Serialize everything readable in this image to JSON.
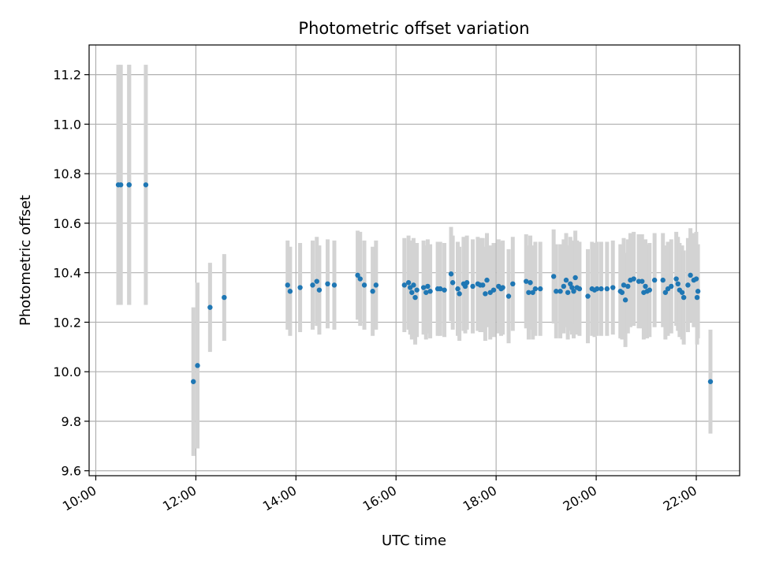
{
  "chart_data": {
    "type": "scatter",
    "title": "Photometric offset variation",
    "xlabel": "UTC time",
    "ylabel": "Photometric offset",
    "x_ticks": [
      "10:00",
      "12:00",
      "14:00",
      "16:00",
      "18:00",
      "20:00",
      "22:00"
    ],
    "y_ticks": [
      "9.6",
      "9.8",
      "10.0",
      "10.2",
      "10.4",
      "10.6",
      "10.8",
      "11.0",
      "11.2"
    ],
    "xlim": [
      "09:52",
      "22:52"
    ],
    "ylim": [
      9.58,
      11.32
    ],
    "grid": true,
    "colors": {
      "points": "#1f77b4",
      "errorbars": "#d3d3d3",
      "grid": "#b0b0b0"
    },
    "series": [
      {
        "x": [
          "10:27",
          "10:30",
          "10:40",
          "10:40",
          "11:00",
          "11:57",
          "12:02",
          "12:17",
          "12:34",
          "13:50",
          "13:53",
          "14:05",
          "14:20",
          "14:25",
          "14:28",
          "14:38",
          "14:46",
          "15:14",
          "15:17",
          "15:22",
          "15:32",
          "15:36",
          "16:10",
          "16:15",
          "16:17",
          "16:19",
          "16:21",
          "16:23",
          "16:25",
          "16:33",
          "16:36",
          "16:38",
          "16:41",
          "16:50",
          "16:53",
          "16:58",
          "17:06",
          "17:08",
          "17:14",
          "17:16",
          "17:21",
          "17:23",
          "17:25",
          "17:32",
          "17:38",
          "17:41",
          "17:44",
          "17:47",
          "17:49",
          "17:53",
          "17:57",
          "18:03",
          "18:06",
          "18:08",
          "18:15",
          "18:20",
          "18:36",
          "18:39",
          "18:41",
          "18:44",
          "18:47",
          "18:53",
          "19:09",
          "19:12",
          "19:17",
          "19:21",
          "19:24",
          "19:26",
          "19:29",
          "19:31",
          "19:33",
          "19:35",
          "19:37",
          "19:40",
          "19:50",
          "19:55",
          "19:58",
          "20:01",
          "20:06",
          "20:13",
          "20:20",
          "20:29",
          "20:31",
          "20:33",
          "20:35",
          "20:38",
          "20:41",
          "20:45",
          "20:51",
          "20:55",
          "20:57",
          "20:59",
          "21:01",
          "21:04",
          "21:10",
          "21:20",
          "21:23",
          "21:26",
          "21:30",
          "21:36",
          "21:38",
          "21:40",
          "21:43",
          "21:45",
          "21:50",
          "21:53",
          "21:57",
          "22:00",
          "22:01",
          "22:02",
          "22:17"
        ],
        "y": [
          10.755,
          10.755,
          10.755,
          10.755,
          10.755,
          9.96,
          10.025,
          10.26,
          10.3,
          10.35,
          10.325,
          10.34,
          10.35,
          10.365,
          10.33,
          10.355,
          10.35,
          10.39,
          10.375,
          10.35,
          10.325,
          10.35,
          10.35,
          10.36,
          10.34,
          10.32,
          10.35,
          10.3,
          10.33,
          10.34,
          10.32,
          10.345,
          10.325,
          10.335,
          10.335,
          10.33,
          10.395,
          10.36,
          10.335,
          10.315,
          10.355,
          10.345,
          10.36,
          10.345,
          10.355,
          10.35,
          10.35,
          10.315,
          10.37,
          10.32,
          10.33,
          10.345,
          10.335,
          10.34,
          10.305,
          10.355,
          10.365,
          10.32,
          10.36,
          10.32,
          10.335,
          10.335,
          10.385,
          10.325,
          10.325,
          10.345,
          10.37,
          10.32,
          10.355,
          10.34,
          10.325,
          10.38,
          10.34,
          10.335,
          10.305,
          10.335,
          10.33,
          10.335,
          10.335,
          10.335,
          10.34,
          10.325,
          10.32,
          10.35,
          10.29,
          10.345,
          10.37,
          10.375,
          10.365,
          10.365,
          10.32,
          10.345,
          10.325,
          10.33,
          10.37,
          10.37,
          10.32,
          10.335,
          10.345,
          10.375,
          10.355,
          10.33,
          10.32,
          10.3,
          10.35,
          10.39,
          10.37,
          10.375,
          10.3,
          10.325,
          9.96
        ],
        "yerr": [
          0.485,
          0.485,
          0.485,
          0.485,
          0.485,
          0.3,
          0.335,
          0.18,
          0.175,
          0.18,
          0.18,
          0.18,
          0.18,
          0.18,
          0.18,
          0.18,
          0.18,
          0.18,
          0.19,
          0.18,
          0.18,
          0.18,
          0.19,
          0.19,
          0.19,
          0.19,
          0.19,
          0.19,
          0.19,
          0.19,
          0.19,
          0.19,
          0.19,
          0.19,
          0.19,
          0.19,
          0.19,
          0.19,
          0.19,
          0.19,
          0.19,
          0.19,
          0.19,
          0.19,
          0.19,
          0.19,
          0.19,
          0.19,
          0.19,
          0.19,
          0.19,
          0.19,
          0.19,
          0.19,
          0.19,
          0.19,
          0.19,
          0.19,
          0.19,
          0.19,
          0.19,
          0.19,
          0.19,
          0.19,
          0.19,
          0.19,
          0.19,
          0.19,
          0.19,
          0.19,
          0.19,
          0.19,
          0.19,
          0.19,
          0.19,
          0.19,
          0.19,
          0.19,
          0.19,
          0.19,
          0.19,
          0.19,
          0.19,
          0.19,
          0.19,
          0.19,
          0.19,
          0.19,
          0.19,
          0.19,
          0.19,
          0.19,
          0.19,
          0.19,
          0.19,
          0.19,
          0.19,
          0.19,
          0.19,
          0.19,
          0.19,
          0.19,
          0.19,
          0.19,
          0.19,
          0.19,
          0.19,
          0.19,
          0.19,
          0.19,
          0.21
        ]
      }
    ]
  }
}
